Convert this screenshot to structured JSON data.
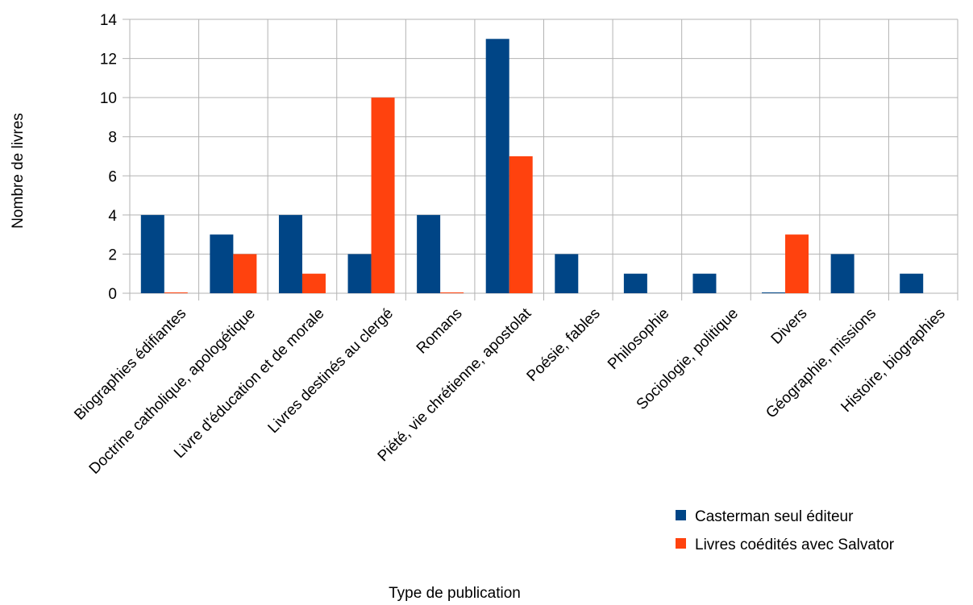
{
  "chart_data": {
    "type": "bar",
    "title": "",
    "xlabel": "Type de publication",
    "ylabel": "Nombre de livres",
    "ylim": [
      0,
      14
    ],
    "yticks": [
      0,
      2,
      4,
      6,
      8,
      10,
      12,
      14
    ],
    "grid": true,
    "legend_position": "bottom-right",
    "categories": [
      "Biographies édifiantes",
      "Doctrine catholique, apologétique",
      "Livre d'éducation et de morale",
      "Livres destinés au clergé",
      "Romans",
      "Piété, vie chrétienne, apostolat",
      "Poésie, fables",
      "Philosophie",
      "Sociologie, politique",
      "Divers",
      "Géographie, missions",
      "Histoire, biographies"
    ],
    "series": [
      {
        "name": "Casterman seul éditeur",
        "color": "#004586",
        "values": [
          4,
          3,
          4,
          2,
          4,
          13,
          2,
          1,
          1,
          0,
          2,
          1
        ]
      },
      {
        "name": "Livres coédités avec Salvator",
        "color": "#ff420e",
        "values": [
          0,
          2,
          1,
          10,
          0,
          7,
          null,
          null,
          null,
          3,
          null,
          null
        ]
      }
    ]
  }
}
